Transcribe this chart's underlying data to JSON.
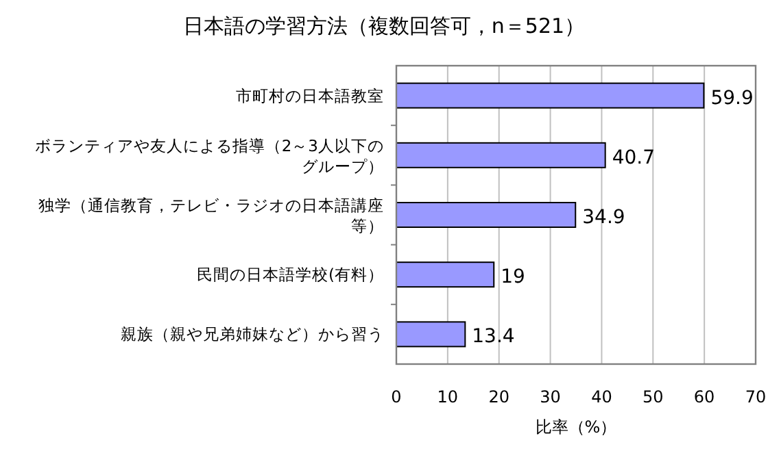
{
  "chart_data": {
    "type": "bar",
    "orientation": "horizontal",
    "title": "日本語の学習方法（複数回答可，n＝521）",
    "xlabel": "比率（%）",
    "categories": [
      "市町村の日本語教室",
      "ボランティアや友人による指導（2～3人以下のグループ）",
      "独学（通信教育，テレビ・ラジオの日本語講座等）",
      "民間の日本語学校(有料）",
      "親族（親や兄弟姉妹など）から習う"
    ],
    "values": [
      59.9,
      40.7,
      34.9,
      19,
      13.4
    ],
    "color": "#9999ff",
    "xlim": [
      0,
      70
    ],
    "xticks": [
      0,
      10,
      20,
      30,
      40,
      50,
      60,
      70
    ],
    "grid": "x",
    "data_labels": true
  }
}
